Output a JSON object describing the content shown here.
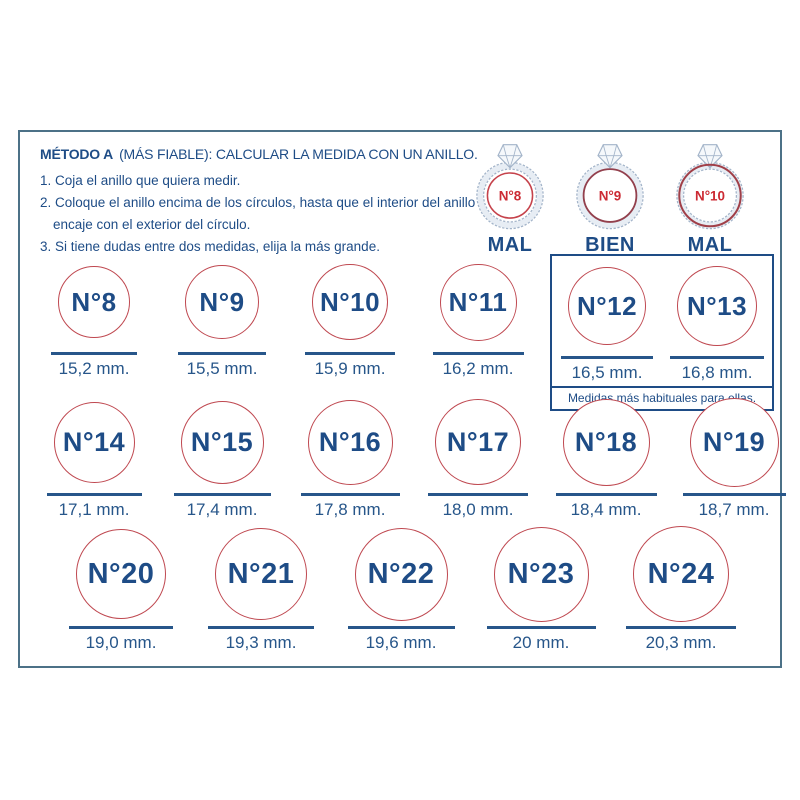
{
  "header": {
    "title_bold": "MÉTODO A",
    "title_rest": "(MÁS FIABLE): CALCULAR LA MEDIDA CON UN ANILLO.",
    "instructions": [
      "1. Coja el anillo que quiera medir.",
      "2. Coloque el anillo encima de los círculos, hasta que el interior del anillo encaje con el exterior del círculo.",
      "3. Si tiene dudas entre dos medidas, elija la más grande."
    ]
  },
  "fit_guide": {
    "examples": [
      {
        "label": "N°8",
        "verdict": "MAL",
        "fit": "small"
      },
      {
        "label": "N°9",
        "verdict": "BIEN",
        "fit": "good"
      },
      {
        "label": "N°10",
        "verdict": "MAL",
        "fit": "big"
      }
    ]
  },
  "highlight": {
    "caption": "Medidas más habituales para ellas."
  },
  "sizes": {
    "rows": [
      [
        {
          "label": "N°8",
          "mm": 15.2,
          "mm_label": "15,2 mm."
        },
        {
          "label": "N°9",
          "mm": 15.5,
          "mm_label": "15,5 mm."
        },
        {
          "label": "N°10",
          "mm": 15.9,
          "mm_label": "15,9 mm."
        },
        {
          "label": "N°11",
          "mm": 16.2,
          "mm_label": "16,2 mm."
        },
        {
          "label": "N°12",
          "mm": 16.5,
          "mm_label": "16,5 mm."
        },
        {
          "label": "N°13",
          "mm": 16.8,
          "mm_label": "16,8 mm."
        }
      ],
      [
        {
          "label": "N°14",
          "mm": 17.1,
          "mm_label": "17,1 mm."
        },
        {
          "label": "N°15",
          "mm": 17.4,
          "mm_label": "17,4 mm."
        },
        {
          "label": "N°16",
          "mm": 17.8,
          "mm_label": "17,8 mm."
        },
        {
          "label": "N°17",
          "mm": 18.0,
          "mm_label": "18,0 mm."
        },
        {
          "label": "N°18",
          "mm": 18.4,
          "mm_label": "18,4 mm."
        },
        {
          "label": "N°19",
          "mm": 18.7,
          "mm_label": "18,7 mm."
        }
      ],
      [
        {
          "label": "N°20",
          "mm": 19.0,
          "mm_label": "19,0 mm."
        },
        {
          "label": "N°21",
          "mm": 19.3,
          "mm_label": "19,3 mm."
        },
        {
          "label": "N°22",
          "mm": 19.6,
          "mm_label": "19,6 mm."
        },
        {
          "label": "N°23",
          "mm": 20.0,
          "mm_label": "20 mm."
        },
        {
          "label": "N°24",
          "mm": 20.3,
          "mm_label": "20,3 mm."
        }
      ]
    ]
  },
  "colors": {
    "navy": "#1e4c86",
    "circle_red": "#bf4850",
    "label_red": "#cc2a33",
    "band_blue": "#a3b4c9",
    "frame_border": "#4c7187"
  }
}
